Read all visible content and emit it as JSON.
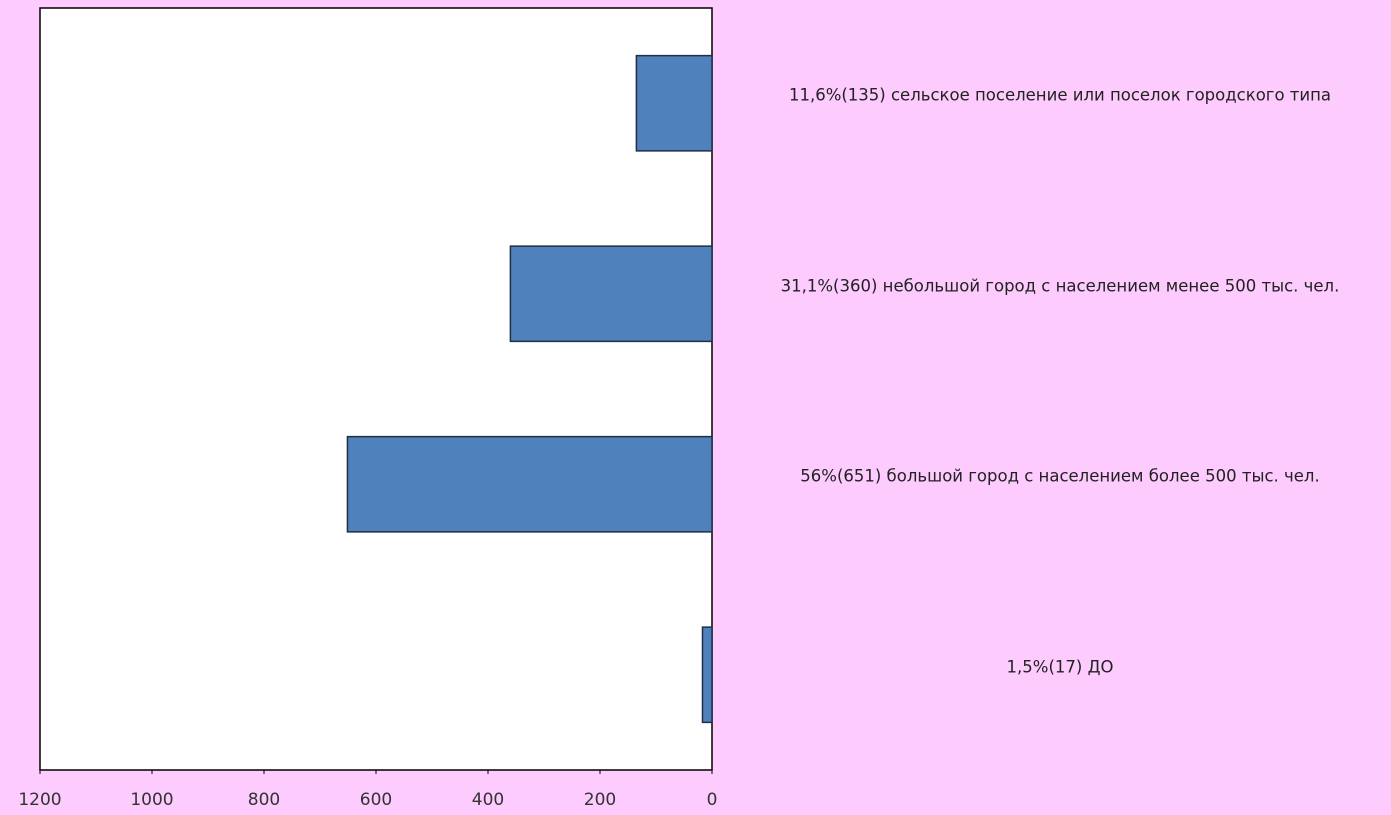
{
  "chart_data": {
    "type": "bar",
    "orientation": "horizontal",
    "x_reversed": true,
    "categories": [
      "11,6%(135) сельское поселение или поселок городского типа",
      "31,1%(360) небольшой город с населением менее 500 тыс. чел.",
      "56%(651) большой город с населением более 500 тыс. чел.",
      "1,5%(17) ДО"
    ],
    "values": [
      135,
      360,
      651,
      17
    ],
    "color": "#4f81bd",
    "xlim": [
      0,
      1200
    ],
    "xticks": [
      0,
      200,
      400,
      600,
      800,
      1000,
      1200
    ]
  }
}
